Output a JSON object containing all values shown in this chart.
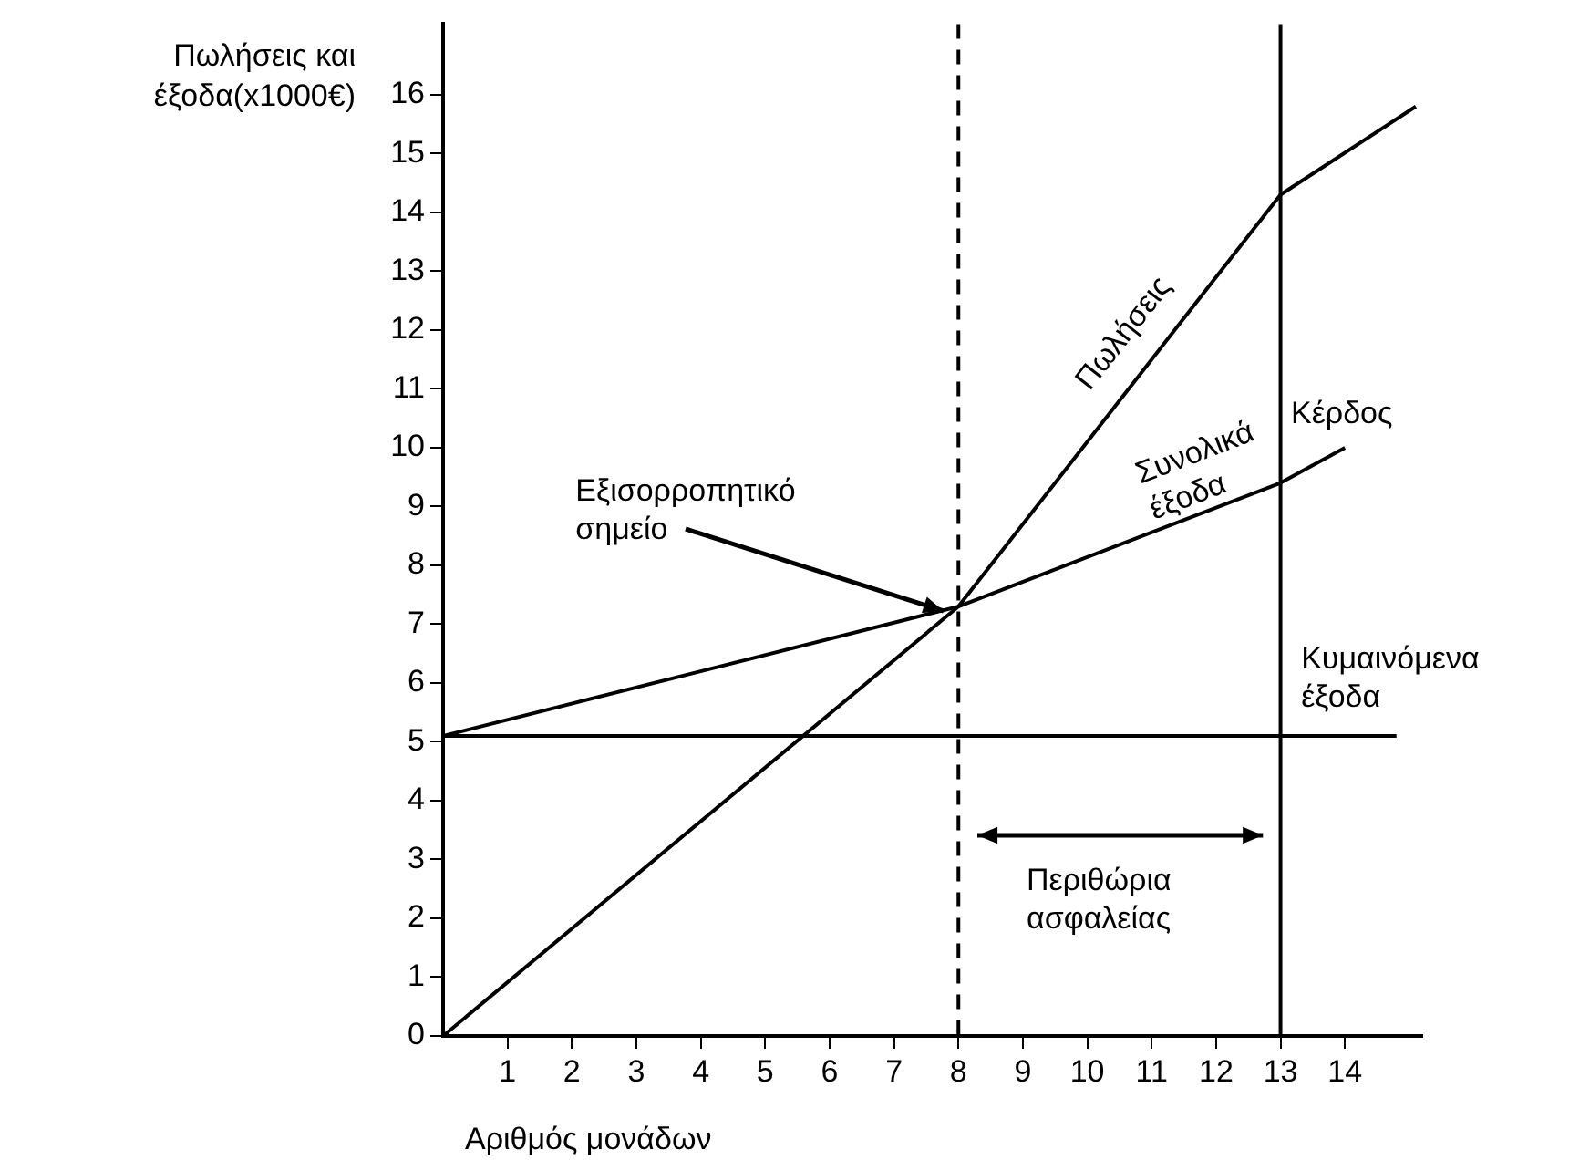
{
  "chart_data": {
    "type": "line",
    "ylabel": "Πωλήσεις και\nέξοδα(x1000€)",
    "xlabel": "Αριθμός μονάδων",
    "series": [
      {
        "name": "Πωλήσεις",
        "color": "#000000",
        "x": [
          0,
          8,
          13,
          15.1
        ],
        "values": [
          0,
          7.3,
          14.3,
          15.8
        ]
      },
      {
        "name": "Συνολικά\nέξοδα",
        "color": "#000000",
        "x": [
          0,
          8,
          13,
          14
        ],
        "values": [
          5.1,
          7.3,
          9.4,
          10
        ]
      },
      {
        "name": "Κυμαινόμενα\nέξοδα",
        "color": "#000000",
        "x": [
          0,
          14.8
        ],
        "values": [
          5.1,
          5.1
        ]
      }
    ],
    "xlim": [
      0,
      15.2
    ],
    "xticks": [
      1,
      2,
      3,
      4,
      5,
      6,
      7,
      8,
      9,
      10,
      11,
      12,
      13,
      14
    ],
    "ylim": [
      0,
      17.2
    ],
    "yticks": [
      0,
      1,
      2,
      3,
      4,
      5,
      6,
      7,
      8,
      9,
      10,
      11,
      12,
      13,
      14,
      15,
      16
    ],
    "ref_lines": [
      {
        "axis": "x",
        "value": 8,
        "line_style": "dashed",
        "color": "#000000"
      },
      {
        "axis": "x",
        "value": 13,
        "line_style": "solid",
        "color": "#000000"
      }
    ],
    "annotations": [
      "Κέρδος",
      {
        "text": "Εξισορροπητικό\nσημείο",
        "x": 8,
        "y": 7.3
      },
      "Περιθώρια\nασφαλείας"
    ],
    "grid": false,
    "legend": false,
    "marker": "none",
    "line_style": "solid"
  }
}
